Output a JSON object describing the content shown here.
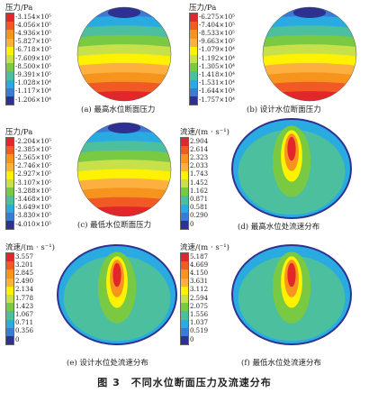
{
  "figure": {
    "title": "图 3　不同水位断面压力及流速分布"
  },
  "panels": [
    {
      "id": "a",
      "kind": "pressure",
      "caption": "(a) 最高水位断面压力",
      "legend_title": "压力/Pa",
      "labels": [
        "-3.154×10⁵",
        "-4.056×10⁵",
        "-4.936×10⁵",
        "-5.827×10⁵",
        "-6.718×10⁵",
        "-7.609×10⁵",
        "-8.500×10⁵",
        "-9.391×10⁵",
        "-1.028×10⁴",
        "-1.117×10⁴",
        "-1.206×10⁴"
      ],
      "colors": [
        "#e3262a",
        "#f15a24",
        "#f7941d",
        "#fbb040",
        "#fff200",
        "#c8e04a",
        "#7ac943",
        "#4cbf9f",
        "#29abe2",
        "#3a7bd5",
        "#2e3192"
      ]
    },
    {
      "id": "b",
      "kind": "pressure",
      "caption": "(b) 设计水位断面压力",
      "legend_title": "压力/Pa",
      "labels": [
        "-6.275×10⁵",
        "-7.404×10⁵",
        "-8.533×10⁵",
        "-9.663×10⁵",
        "-1.079×10⁴",
        "-1.192×10⁴",
        "-1.305×10⁴",
        "-1.418×10⁴",
        "-1.531×10⁴",
        "-1.644×10⁴",
        "-1.757×10⁴"
      ],
      "colors": [
        "#e3262a",
        "#f15a24",
        "#f7941d",
        "#fbb040",
        "#fff200",
        "#c8e04a",
        "#7ac943",
        "#4cbf9f",
        "#29abe2",
        "#3a7bd5",
        "#2e3192"
      ]
    },
    {
      "id": "c",
      "kind": "pressure",
      "caption": "(c) 最低水位断面压力",
      "legend_title": "压力/Pa",
      "labels": [
        "-2.204×10⁵",
        "-2.385×10⁵",
        "-2.565×10⁵",
        "-2.746×10⁵",
        "-2.927×10⁵",
        "-3.107×10⁵",
        "-3.288×10⁵",
        "-3.468×10⁵",
        "-3.649×10⁵",
        "-3.830×10⁵",
        "-4.010×10⁵"
      ],
      "colors": [
        "#e3262a",
        "#f15a24",
        "#f7941d",
        "#fbb040",
        "#fff200",
        "#c8e04a",
        "#7ac943",
        "#4cbf9f",
        "#29abe2",
        "#3a7bd5",
        "#2e3192"
      ]
    },
    {
      "id": "d",
      "kind": "velocity",
      "caption": "(d) 最高水位处流速分布",
      "legend_title": "流速/(m · s⁻¹)",
      "labels": [
        "2.904",
        "2.614",
        "2.323",
        "2.033",
        "1.743",
        "1.452",
        "1.162",
        "0.871",
        "0.581",
        "0.290",
        "0"
      ],
      "colors": [
        "#e3262a",
        "#f15a24",
        "#f7941d",
        "#fbb040",
        "#fff200",
        "#c8e04a",
        "#7ac943",
        "#4cbf9f",
        "#29abe2",
        "#3a7bd5",
        "#2e3192"
      ]
    },
    {
      "id": "e",
      "kind": "velocity",
      "caption": "(e) 设计水位处流速分布",
      "legend_title": "流速/(m · s⁻¹)",
      "labels": [
        "3.557",
        "3.201",
        "2.845",
        "2.490",
        "2.134",
        "1.778",
        "1.423",
        "1.067",
        "0.711",
        "0.356",
        "0"
      ],
      "colors": [
        "#e3262a",
        "#f15a24",
        "#f7941d",
        "#fbb040",
        "#fff200",
        "#c8e04a",
        "#7ac943",
        "#4cbf9f",
        "#29abe2",
        "#3a7bd5",
        "#2e3192"
      ]
    },
    {
      "id": "f",
      "kind": "velocity",
      "caption": "(f) 最低水位处流速分布",
      "legend_title": "流速/(m · s⁻¹)",
      "labels": [
        "5.187",
        "4.669",
        "4.150",
        "3.631",
        "3.112",
        "2.594",
        "2.075",
        "1.556",
        "1.037",
        "0.519",
        "0"
      ],
      "colors": [
        "#e3262a",
        "#f15a24",
        "#f7941d",
        "#fbb040",
        "#fff200",
        "#c8e04a",
        "#7ac943",
        "#4cbf9f",
        "#29abe2",
        "#3a7bd5",
        "#2e3192"
      ]
    }
  ]
}
